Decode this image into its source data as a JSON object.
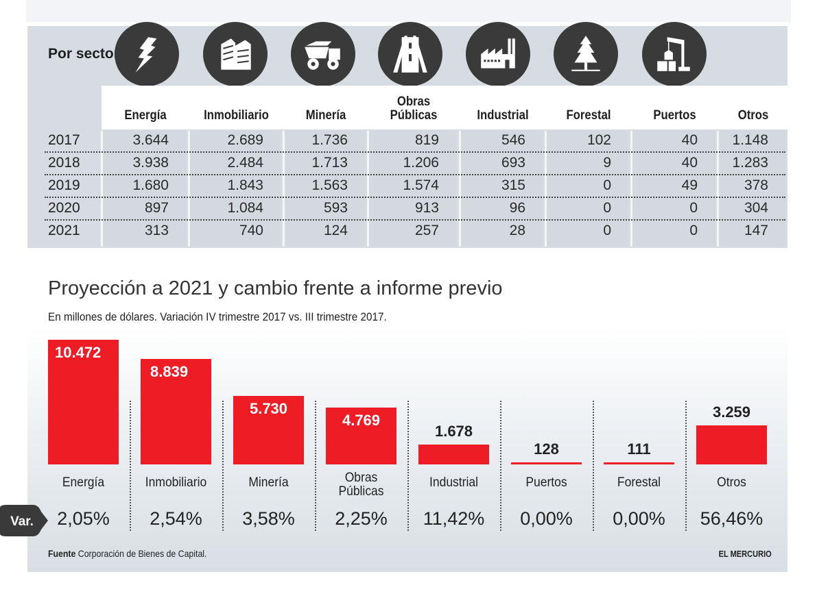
{
  "table": {
    "heading": "Por sectores",
    "icons": [
      "lightning-icon",
      "building-icon",
      "mining-truck-icon",
      "road-icon",
      "factory-icon",
      "pine-tree-icon",
      "port-crane-icon"
    ],
    "columns": [
      "Energía",
      "Inmobiliario",
      "Minería",
      "Obras Públicas",
      "Industrial",
      "Forestal",
      "Puertos",
      "Otros"
    ],
    "column_lines": [
      [
        "Energía"
      ],
      [
        "Inmobiliario"
      ],
      [
        "Minería"
      ],
      [
        "Obras",
        "Públicas"
      ],
      [
        "Industrial"
      ],
      [
        "Forestal"
      ],
      [
        "Puertos"
      ],
      [
        "Otros"
      ]
    ],
    "rows": [
      {
        "year": "2017",
        "values": [
          "3.644",
          "2.689",
          "1.736",
          "819",
          "546",
          "102",
          "40",
          "1.148"
        ]
      },
      {
        "year": "2018",
        "values": [
          "3.938",
          "2.484",
          "1.713",
          "1.206",
          "693",
          "9",
          "40",
          "1.283"
        ]
      },
      {
        "year": "2019",
        "values": [
          "1.680",
          "1.843",
          "1.563",
          "1.574",
          "315",
          "0",
          "49",
          "378"
        ]
      },
      {
        "year": "2020",
        "values": [
          "897",
          "1.084",
          "593",
          "913",
          "96",
          "0",
          "0",
          "304"
        ]
      },
      {
        "year": "2021",
        "values": [
          "313",
          "740",
          "124",
          "257",
          "28",
          "0",
          "0",
          "147"
        ]
      }
    ]
  },
  "chart_data": {
    "type": "bar",
    "title": "Proyección a 2021 y cambio frente a informe previo",
    "subtitle": "En millones de dólares. Variación IV trimestre 2017 vs. III trimestre 2017.",
    "categories": [
      "Energía",
      "Inmobiliario",
      "Minería",
      "Obras Públicas",
      "Industrial",
      "Puertos",
      "Forestal",
      "Otros"
    ],
    "category_lines": [
      [
        "Energía"
      ],
      [
        "Inmobiliario"
      ],
      [
        "Minería"
      ],
      [
        "Obras",
        "Públicas"
      ],
      [
        "Industrial"
      ],
      [
        "Puertos"
      ],
      [
        "Forestal"
      ],
      [
        "Otros"
      ]
    ],
    "values": [
      10472,
      8839,
      5730,
      4769,
      1678,
      128,
      111,
      3259
    ],
    "value_labels": [
      "10.472",
      "8.839",
      "5.730",
      "4.769",
      "1.678",
      "128",
      "111",
      "3.259"
    ],
    "variation_label": "Var.",
    "variations": [
      "2,05%",
      "2,54%",
      "3,58%",
      "2,25%",
      "11,42%",
      "0,00%",
      "0,00%",
      "56,46%"
    ],
    "bar_color": "#ee1c25",
    "xlabel": "",
    "ylabel": "",
    "ylim": [
      0,
      10472
    ]
  },
  "footer": {
    "source_label": "Fuente",
    "source_text": "Corporación de Bienes de Capital.",
    "brand": "EL MERCURIO"
  }
}
